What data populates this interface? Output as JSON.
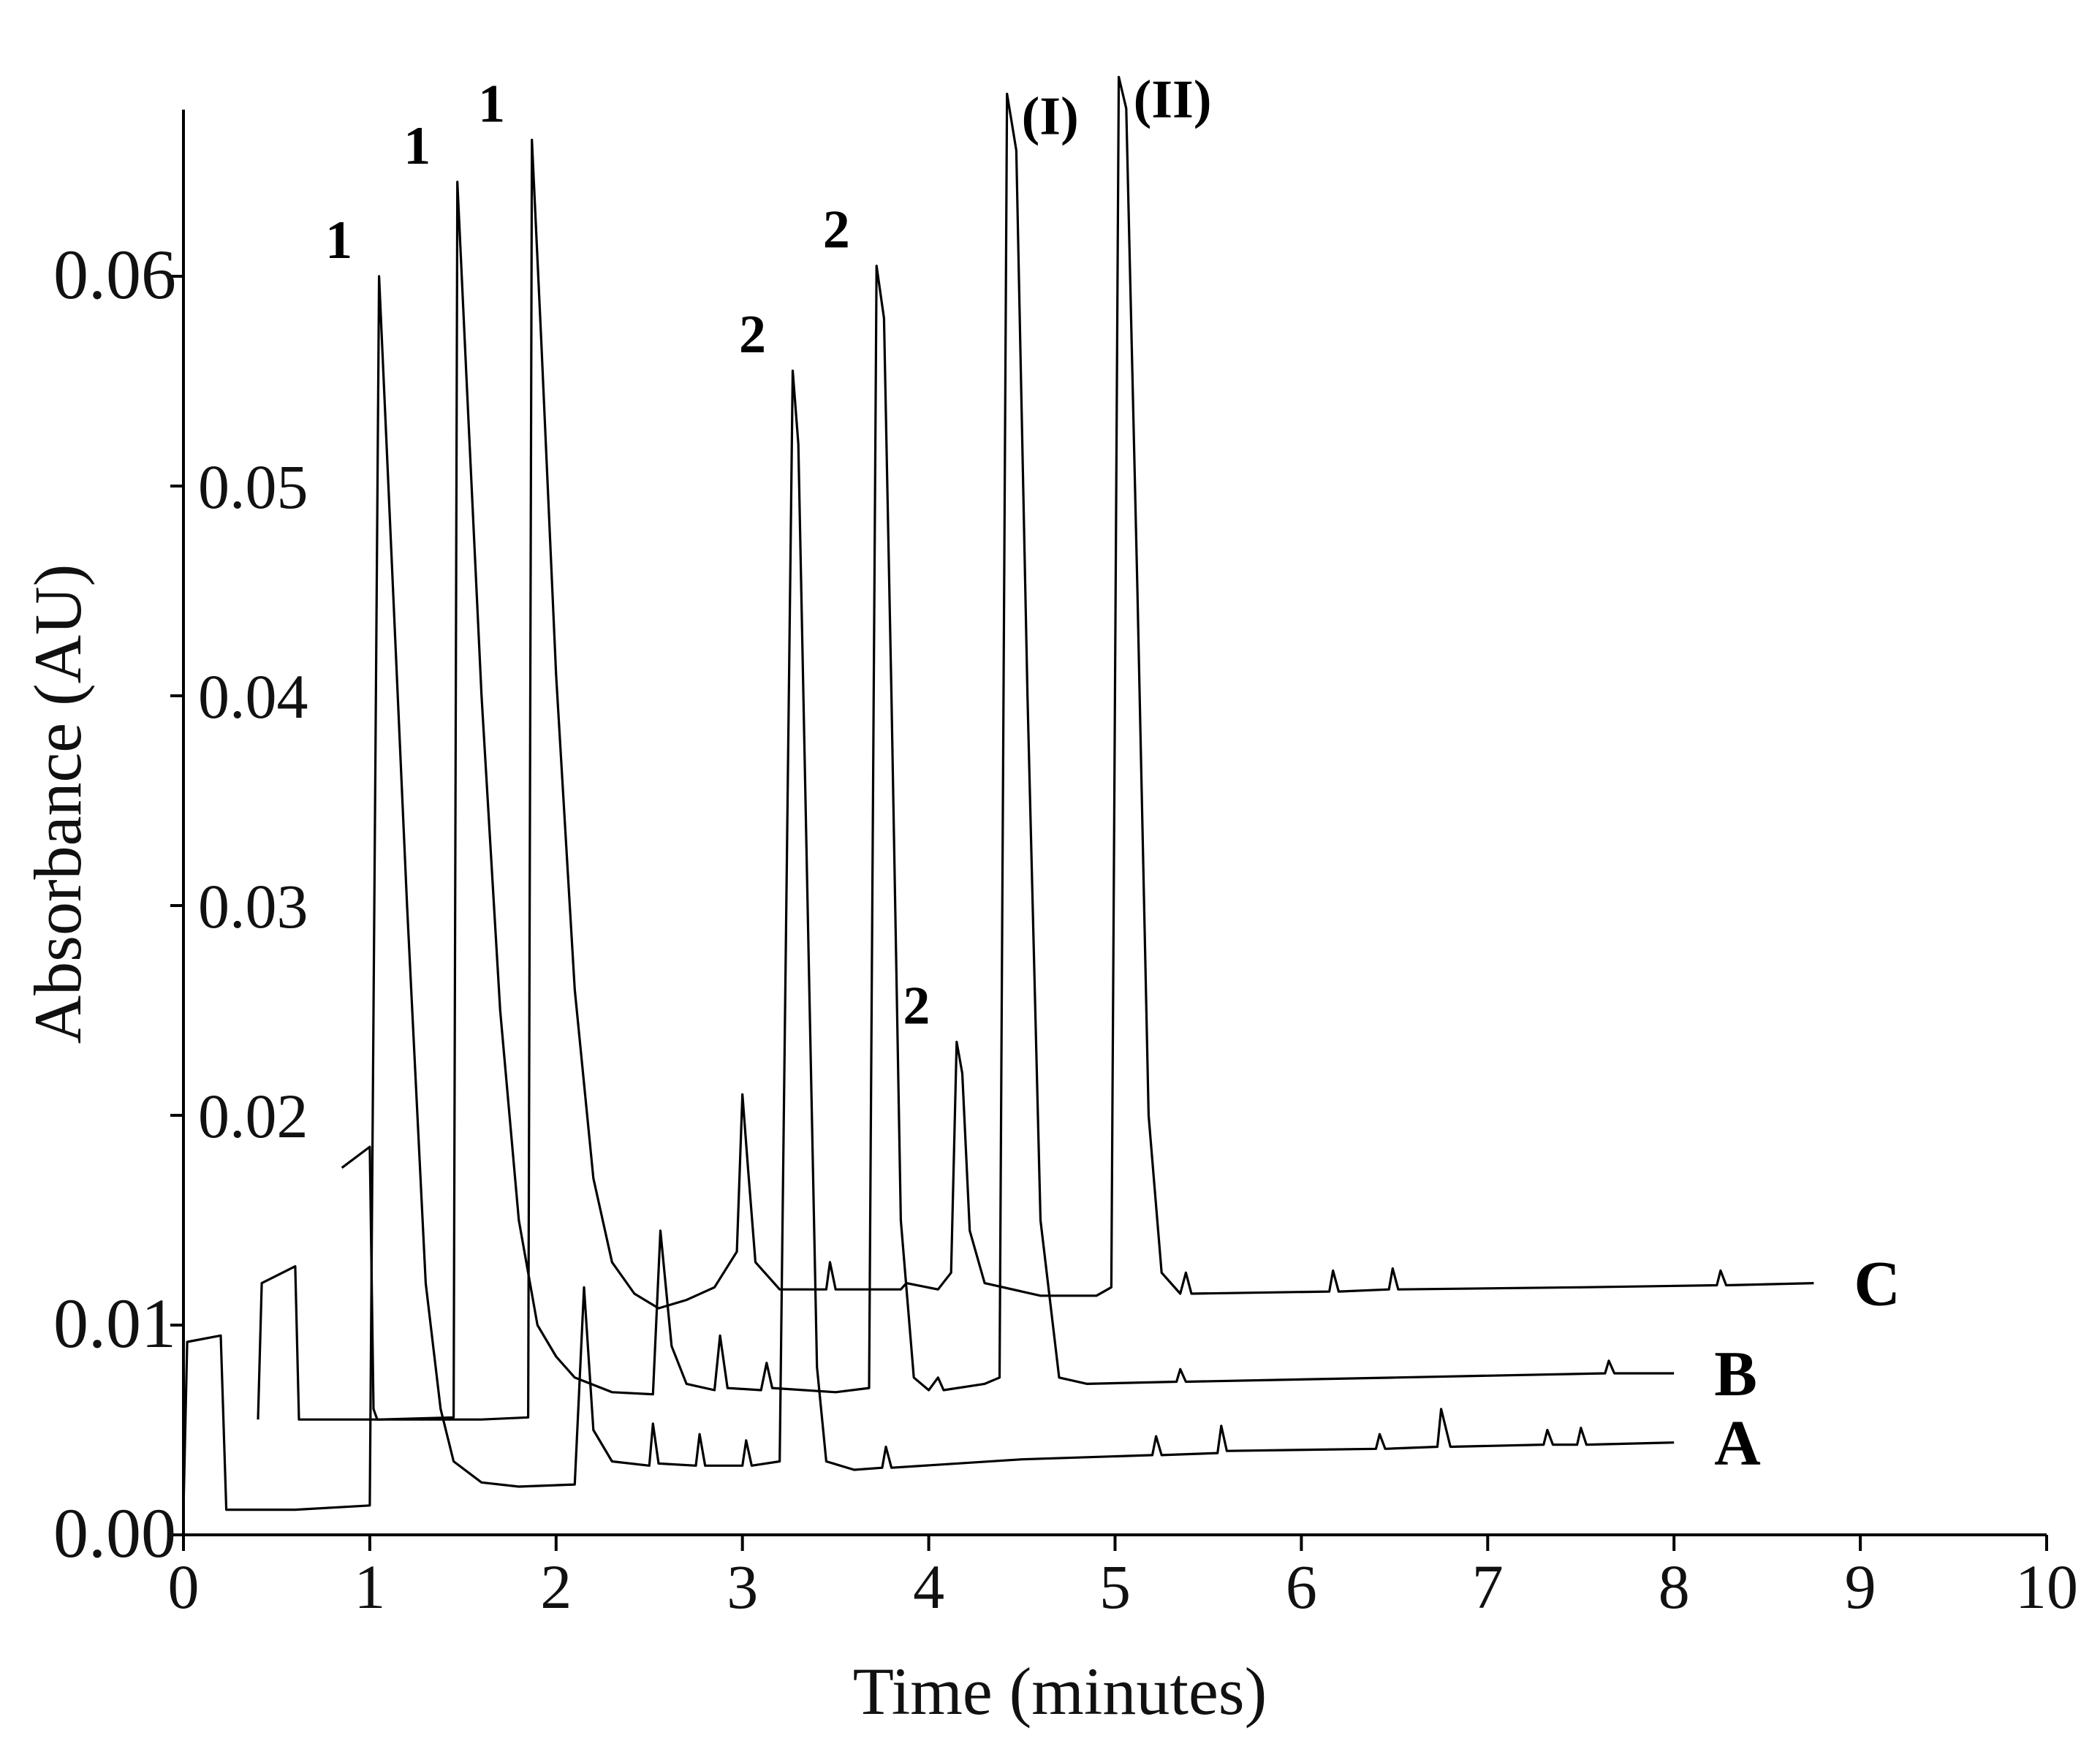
{
  "chart_data": {
    "type": "line",
    "title": "",
    "xlabel": "Time (minutes)",
    "ylabel": "Absorbance (AU)",
    "xlim": [
      0,
      10
    ],
    "ylim": [
      0,
      0.065
    ],
    "grid": false,
    "legend": "labels at trace ends (right)",
    "x_ticks": [
      "0",
      "1",
      "2",
      "3",
      "4",
      "5",
      "6",
      "7",
      "8",
      "9",
      "10"
    ],
    "y_ticks": [
      "0.00",
      "0.01",
      "0.02",
      "0.03",
      "0.04",
      "0.05",
      "0.06"
    ],
    "series": [
      {
        "name": "A",
        "points": [
          [
            0.0,
            0.0012
          ],
          [
            0.02,
            0.0092
          ],
          [
            0.2,
            0.0095
          ],
          [
            0.23,
            0.0012
          ],
          [
            0.6,
            0.0012
          ],
          [
            1.0,
            0.0014
          ],
          [
            1.05,
            0.06
          ],
          [
            1.1,
            0.05
          ],
          [
            1.2,
            0.03
          ],
          [
            1.3,
            0.012
          ],
          [
            1.38,
            0.006
          ],
          [
            1.45,
            0.0035
          ],
          [
            1.6,
            0.0025
          ],
          [
            1.8,
            0.0023
          ],
          [
            2.1,
            0.0024
          ],
          [
            2.15,
            0.0118
          ],
          [
            2.2,
            0.005
          ],
          [
            2.3,
            0.0035
          ],
          [
            2.5,
            0.0033
          ],
          [
            2.52,
            0.0053
          ],
          [
            2.55,
            0.0034
          ],
          [
            2.75,
            0.0033
          ],
          [
            2.77,
            0.0048
          ],
          [
            2.8,
            0.0033
          ],
          [
            3.0,
            0.0033
          ],
          [
            3.02,
            0.0045
          ],
          [
            3.05,
            0.0033
          ],
          [
            3.2,
            0.0035
          ],
          [
            3.27,
            0.0555
          ],
          [
            3.3,
            0.052
          ],
          [
            3.35,
            0.03
          ],
          [
            3.4,
            0.008
          ],
          [
            3.45,
            0.0035
          ],
          [
            3.6,
            0.0031
          ],
          [
            3.75,
            0.0032
          ],
          [
            3.77,
            0.0042
          ],
          [
            3.8,
            0.0032
          ],
          [
            4.5,
            0.0036
          ],
          [
            5.2,
            0.0038
          ],
          [
            5.22,
            0.0047
          ],
          [
            5.25,
            0.0038
          ],
          [
            5.55,
            0.0039
          ],
          [
            5.57,
            0.0052
          ],
          [
            5.6,
            0.004
          ],
          [
            6.4,
            0.0041
          ],
          [
            6.42,
            0.0048
          ],
          [
            6.45,
            0.0041
          ],
          [
            6.73,
            0.0042
          ],
          [
            6.75,
            0.006
          ],
          [
            6.8,
            0.0042
          ],
          [
            7.3,
            0.0043
          ],
          [
            7.32,
            0.005
          ],
          [
            7.35,
            0.0043
          ],
          [
            7.48,
            0.0043
          ],
          [
            7.5,
            0.0051
          ],
          [
            7.53,
            0.0043
          ],
          [
            8.0,
            0.0044
          ]
        ]
      },
      {
        "name": "B",
        "points": [
          [
            0.4,
            0.0055
          ],
          [
            0.42,
            0.012
          ],
          [
            0.6,
            0.0128
          ],
          [
            0.62,
            0.0055
          ],
          [
            1.05,
            0.0055
          ],
          [
            1.45,
            0.0056
          ],
          [
            1.47,
            0.0645
          ],
          [
            1.52,
            0.055
          ],
          [
            1.6,
            0.04
          ],
          [
            1.7,
            0.025
          ],
          [
            1.8,
            0.015
          ],
          [
            1.9,
            0.01
          ],
          [
            2.0,
            0.0085
          ],
          [
            2.1,
            0.0075
          ],
          [
            2.3,
            0.0068
          ],
          [
            2.52,
            0.0067
          ],
          [
            2.56,
            0.0145
          ],
          [
            2.62,
            0.009
          ],
          [
            2.7,
            0.0072
          ],
          [
            2.85,
            0.0069
          ],
          [
            2.88,
            0.0095
          ],
          [
            2.92,
            0.007
          ],
          [
            3.1,
            0.0069
          ],
          [
            3.13,
            0.0082
          ],
          [
            3.16,
            0.007
          ],
          [
            3.5,
            0.0068
          ],
          [
            3.68,
            0.007
          ],
          [
            3.72,
            0.0605
          ],
          [
            3.76,
            0.058
          ],
          [
            3.8,
            0.04
          ],
          [
            3.85,
            0.015
          ],
          [
            3.92,
            0.0075
          ],
          [
            4.0,
            0.0069
          ],
          [
            4.05,
            0.0075
          ],
          [
            4.08,
            0.0069
          ],
          [
            4.3,
            0.0072
          ],
          [
            4.38,
            0.0075
          ],
          [
            4.42,
            0.0687
          ],
          [
            4.47,
            0.066
          ],
          [
            4.53,
            0.04
          ],
          [
            4.6,
            0.015
          ],
          [
            4.7,
            0.0075
          ],
          [
            4.85,
            0.0072
          ],
          [
            5.33,
            0.0073
          ],
          [
            5.35,
            0.0079
          ],
          [
            5.38,
            0.0073
          ],
          [
            6.5,
            0.0075
          ],
          [
            7.63,
            0.0077
          ],
          [
            7.65,
            0.0083
          ],
          [
            7.68,
            0.0077
          ],
          [
            8.0,
            0.0077
          ]
        ]
      },
      {
        "name": "C",
        "points": [
          [
            0.85,
            0.0175
          ],
          [
            1.0,
            0.0185
          ],
          [
            1.02,
            0.006
          ],
          [
            1.04,
            0.0055
          ],
          [
            1.6,
            0.0055
          ],
          [
            1.85,
            0.0056
          ],
          [
            1.87,
            0.0665
          ],
          [
            1.92,
            0.057
          ],
          [
            2.0,
            0.041
          ],
          [
            2.1,
            0.026
          ],
          [
            2.2,
            0.017
          ],
          [
            2.3,
            0.013
          ],
          [
            2.42,
            0.0115
          ],
          [
            2.55,
            0.0108
          ],
          [
            2.7,
            0.0112
          ],
          [
            2.85,
            0.0118
          ],
          [
            2.97,
            0.0135
          ],
          [
            3.0,
            0.021
          ],
          [
            3.03,
            0.0175
          ],
          [
            3.07,
            0.013
          ],
          [
            3.2,
            0.0117
          ],
          [
            3.45,
            0.0117
          ],
          [
            3.47,
            0.013
          ],
          [
            3.5,
            0.0117
          ],
          [
            3.85,
            0.0117
          ],
          [
            3.88,
            0.012
          ],
          [
            4.05,
            0.0117
          ],
          [
            4.12,
            0.0125
          ],
          [
            4.15,
            0.0235
          ],
          [
            4.18,
            0.022
          ],
          [
            4.22,
            0.0145
          ],
          [
            4.3,
            0.012
          ],
          [
            4.6,
            0.0114
          ],
          [
            4.9,
            0.0114
          ],
          [
            4.98,
            0.0118
          ],
          [
            5.02,
            0.0695
          ],
          [
            5.06,
            0.068
          ],
          [
            5.12,
            0.045
          ],
          [
            5.18,
            0.02
          ],
          [
            5.25,
            0.0125
          ],
          [
            5.35,
            0.0115
          ],
          [
            5.38,
            0.0125
          ],
          [
            5.41,
            0.0115
          ],
          [
            6.15,
            0.0116
          ],
          [
            6.17,
            0.0126
          ],
          [
            6.2,
            0.0116
          ],
          [
            6.47,
            0.0117
          ],
          [
            6.49,
            0.0127
          ],
          [
            6.52,
            0.0117
          ],
          [
            7.5,
            0.0118
          ],
          [
            8.23,
            0.0119
          ],
          [
            8.25,
            0.0126
          ],
          [
            8.28,
            0.0119
          ],
          [
            8.75,
            0.012
          ]
        ]
      }
    ],
    "peak_labels": [
      {
        "text": "1",
        "x": 1.05,
        "y": 0.06
      },
      {
        "text": "1",
        "x": 1.47,
        "y": 0.0645
      },
      {
        "text": "1",
        "x": 1.87,
        "y": 0.0665
      },
      {
        "text": "2",
        "x": 3.27,
        "y": 0.0555
      },
      {
        "text": "2",
        "x": 3.72,
        "y": 0.0605
      },
      {
        "text": "2",
        "x": 4.15,
        "y": 0.0235
      },
      {
        "text": "(I)",
        "x": 4.42,
        "y": 0.0687
      },
      {
        "text": "(II)",
        "x": 5.02,
        "y": 0.0695
      }
    ]
  }
}
